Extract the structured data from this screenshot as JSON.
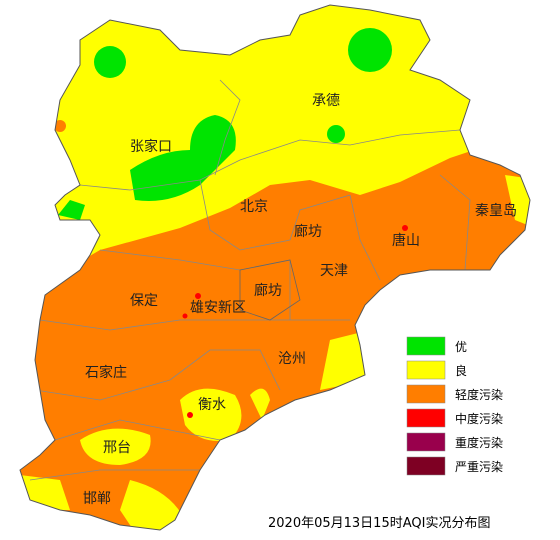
{
  "map": {
    "cities": [
      {
        "label": "承德"
      },
      {
        "label": "张家口"
      },
      {
        "label": "北京"
      },
      {
        "label": "廊坊"
      },
      {
        "label": "秦皇岛"
      },
      {
        "label": "唐山"
      },
      {
        "label": "天津"
      },
      {
        "label": "廊坊"
      },
      {
        "label": "保定"
      },
      {
        "label": "雄安新区"
      },
      {
        "label": "沧州"
      },
      {
        "label": "石家庄"
      },
      {
        "label": "衡水"
      },
      {
        "label": "邢台"
      },
      {
        "label": "邯郸"
      }
    ]
  },
  "legend": {
    "items": [
      {
        "label": "优",
        "color": "#00e400"
      },
      {
        "label": "良",
        "color": "#ffff00"
      },
      {
        "label": "轻度污染",
        "color": "#ff7e00"
      },
      {
        "label": "中度污染",
        "color": "#ff0000"
      },
      {
        "label": "重度污染",
        "color": "#99004c"
      },
      {
        "label": "严重污染",
        "color": "#7e0023"
      }
    ]
  },
  "caption": "2020年05月13日15时AQI实况分布图"
}
